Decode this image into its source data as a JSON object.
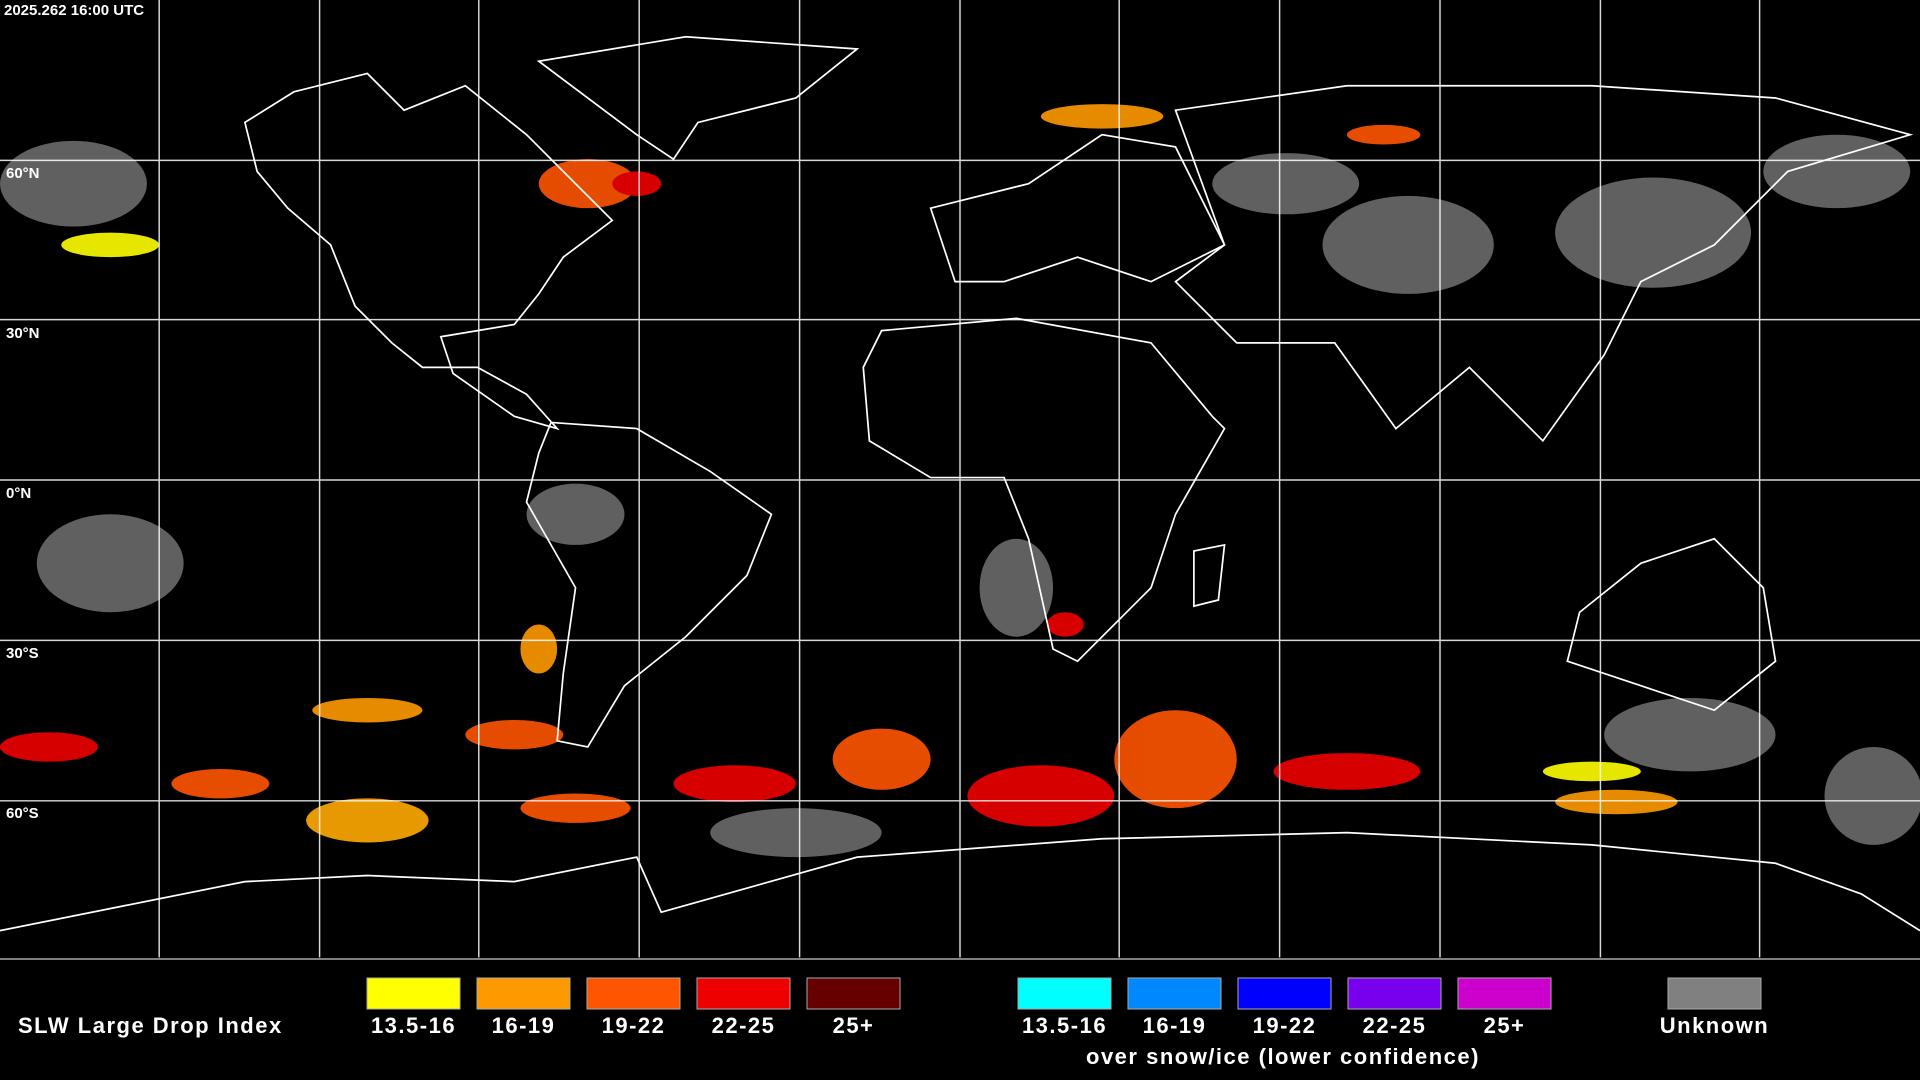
{
  "header": {
    "timestamp": "2025.262 16:00 UTC"
  },
  "map": {
    "latitude_labels": [
      "60°N",
      "30°N",
      "0°N",
      "30°S",
      "60°S"
    ]
  },
  "legend": {
    "title": "SLW Large Drop Index",
    "categories": [
      {
        "label": "13.5-16",
        "color": "#ffff00"
      },
      {
        "label": "16-19",
        "color": "#ff9900"
      },
      {
        "label": "19-22",
        "color": "#ff5500"
      },
      {
        "label": "22-25",
        "color": "#ee0000"
      },
      {
        "label": "25+",
        "color": "#660000"
      }
    ],
    "snow_ice_categories": [
      {
        "label": "13.5-16",
        "color": "#00ffff"
      },
      {
        "label": "16-19",
        "color": "#0088ff"
      },
      {
        "label": "19-22",
        "color": "#0000ff"
      },
      {
        "label": "22-25",
        "color": "#7700ee"
      },
      {
        "label": "25+",
        "color": "#cc00cc"
      }
    ],
    "snow_ice_caption": "over snow/ice (lower confidence)",
    "unknown": {
      "label": "Unknown",
      "color": "#808080"
    }
  }
}
